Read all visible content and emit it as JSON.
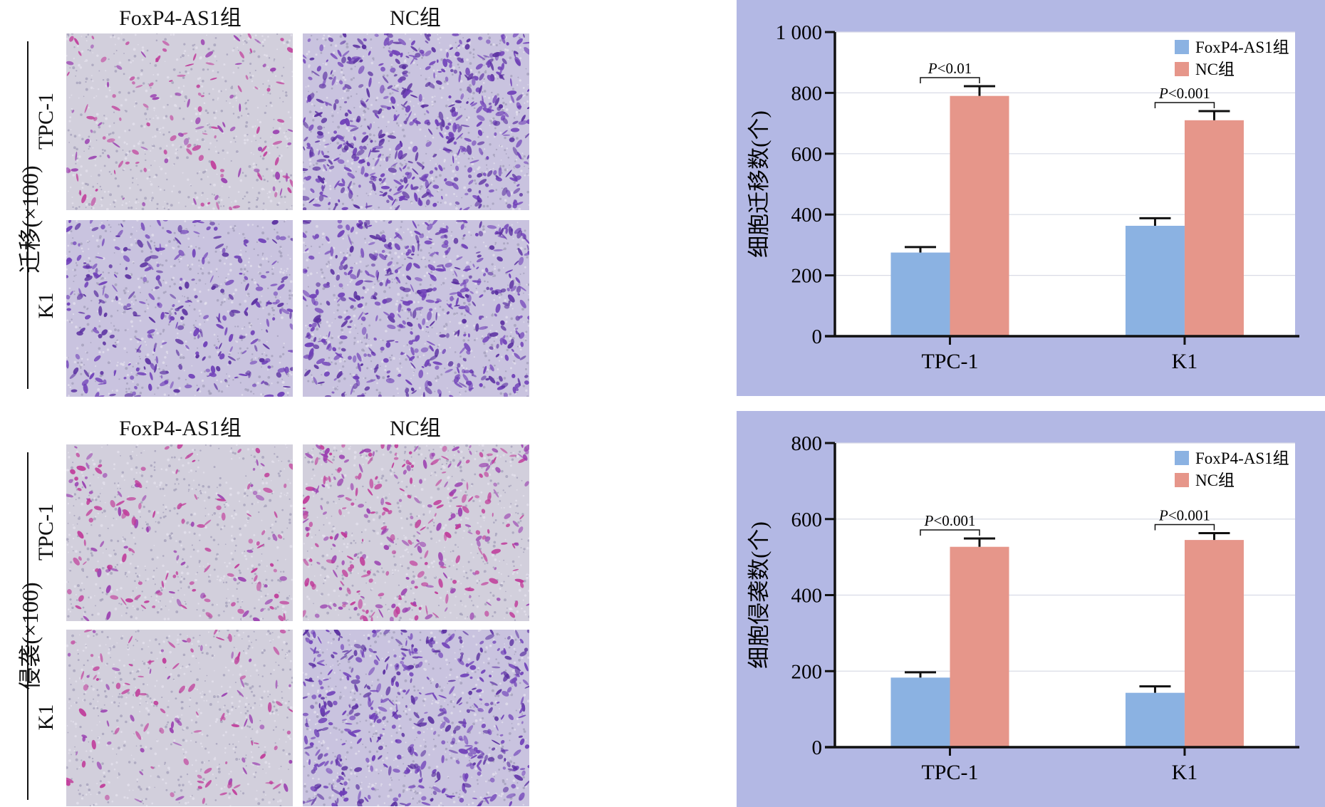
{
  "top": {
    "side_label": "迁移(×100)",
    "col_labels": [
      "FoxP4-AS1组",
      "NC组"
    ],
    "row_labels": [
      "TPC-1",
      "K1"
    ]
  },
  "bottom": {
    "side_label": "侵袭(×100)",
    "col_labels": [
      "FoxP4-AS1组",
      "NC组"
    ],
    "row_labels": [
      "TPC-1",
      "K1"
    ]
  },
  "colors": {
    "panel_bg": "#b3b8e4",
    "foxp4": "#8bb2e2",
    "nc": "#e6968a",
    "stain_dark": "#6f3fb8",
    "stain_pink": "#c03c9a"
  },
  "chart_data": [
    {
      "type": "bar",
      "ylabel": "细胞迁移数(个)",
      "categories": [
        "TPC-1",
        "K1"
      ],
      "series": [
        {
          "name": "FoxP4-AS1组",
          "values": [
            275,
            363
          ],
          "errors": [
            18,
            25
          ]
        },
        {
          "name": "NC组",
          "values": [
            790,
            710
          ],
          "errors": [
            32,
            30
          ]
        }
      ],
      "ylim": [
        0,
        1000
      ],
      "yticks": [
        0,
        200,
        400,
        600,
        800,
        1000
      ],
      "ytick_labels": [
        "0",
        "200",
        "400",
        "600",
        "800",
        "1 000"
      ],
      "grid": true,
      "legend": "top-right",
      "annotations": [
        "P<0.01",
        "P<0.001"
      ]
    },
    {
      "type": "bar",
      "ylabel": "细胞侵袭数(个)",
      "categories": [
        "TPC-1",
        "K1"
      ],
      "series": [
        {
          "name": "FoxP4-AS1组",
          "values": [
            183,
            143
          ],
          "errors": [
            14,
            17
          ]
        },
        {
          "name": "NC组",
          "values": [
            527,
            545
          ],
          "errors": [
            22,
            18
          ]
        }
      ],
      "ylim": [
        0,
        800
      ],
      "yticks": [
        0,
        200,
        400,
        600,
        800
      ],
      "ytick_labels": [
        "0",
        "200",
        "400",
        "600",
        "800"
      ],
      "grid": true,
      "legend": "top-right",
      "annotations": [
        "P<0.001",
        "P<0.001"
      ]
    }
  ]
}
